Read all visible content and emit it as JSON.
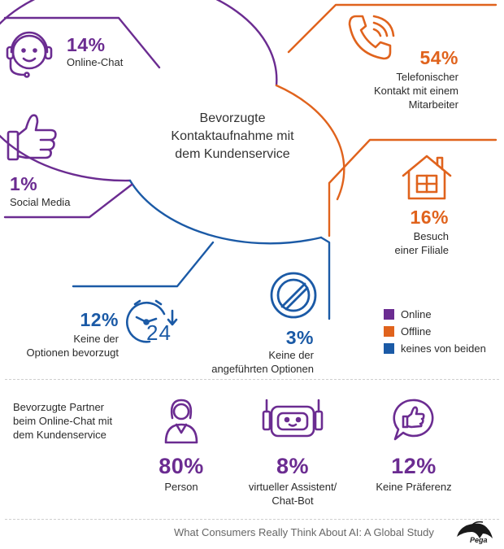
{
  "colors": {
    "online": "#6b2c91",
    "offline": "#e0631d",
    "neither": "#1b5aa6"
  },
  "center": {
    "title_lines": [
      "Bevorzugte",
      "Kontaktaufnahme mit",
      "dem Kundenservice"
    ]
  },
  "channels": [
    {
      "icon": "headset-agent-icon",
      "percent": "14%",
      "label_lines": [
        "Online-Chat"
      ],
      "category": "online",
      "value": 14
    },
    {
      "icon": "thumbs-up-icon",
      "percent": "1%",
      "label_lines": [
        "Social Media"
      ],
      "category": "online",
      "value": 1
    },
    {
      "icon": "phone-icon",
      "percent": "54%",
      "label_lines": [
        "Telefonischer",
        "Kontakt mit einem",
        "Mitarbeiter"
      ],
      "category": "offline",
      "value": 54
    },
    {
      "icon": "house-icon",
      "percent": "16%",
      "label_lines": [
        "Besuch",
        "einer Filiale"
      ],
      "category": "offline",
      "value": 16
    },
    {
      "icon": "clock-24-icon",
      "icon_text": "24",
      "percent": "12%",
      "label_lines": [
        "Keine der",
        "Optionen bevorzugt"
      ],
      "category": "neither",
      "value": 12
    },
    {
      "icon": "prohibited-icon",
      "percent": "3%",
      "label_lines": [
        "Keine der",
        "angeführten Optionen"
      ],
      "category": "neither",
      "value": 3
    }
  ],
  "legend": [
    {
      "label": "Online",
      "color": "#6b2c91"
    },
    {
      "label": "Offline",
      "color": "#e0631d"
    },
    {
      "label": "keines von beiden",
      "color": "#1b5aa6"
    }
  ],
  "partners": {
    "title_lines": [
      "Bevorzugte Partner",
      "beim Online-Chat mit",
      "dem Kundenservice"
    ],
    "items": [
      {
        "icon": "person-agent-icon",
        "percent": "80%",
        "label_lines": [
          "Person"
        ],
        "value": 80
      },
      {
        "icon": "robot-icon",
        "percent": "8%",
        "label_lines": [
          "virtueller Assistent/",
          "Chat-Bot"
        ],
        "value": 8
      },
      {
        "icon": "thumbs-up-bubble-icon",
        "percent": "12%",
        "label_lines": [
          "Keine Präferenz"
        ],
        "value": 12
      }
    ]
  },
  "footer": {
    "source": "What Consumers Really Think About AI: A Global Study",
    "brand": "Pega"
  }
}
